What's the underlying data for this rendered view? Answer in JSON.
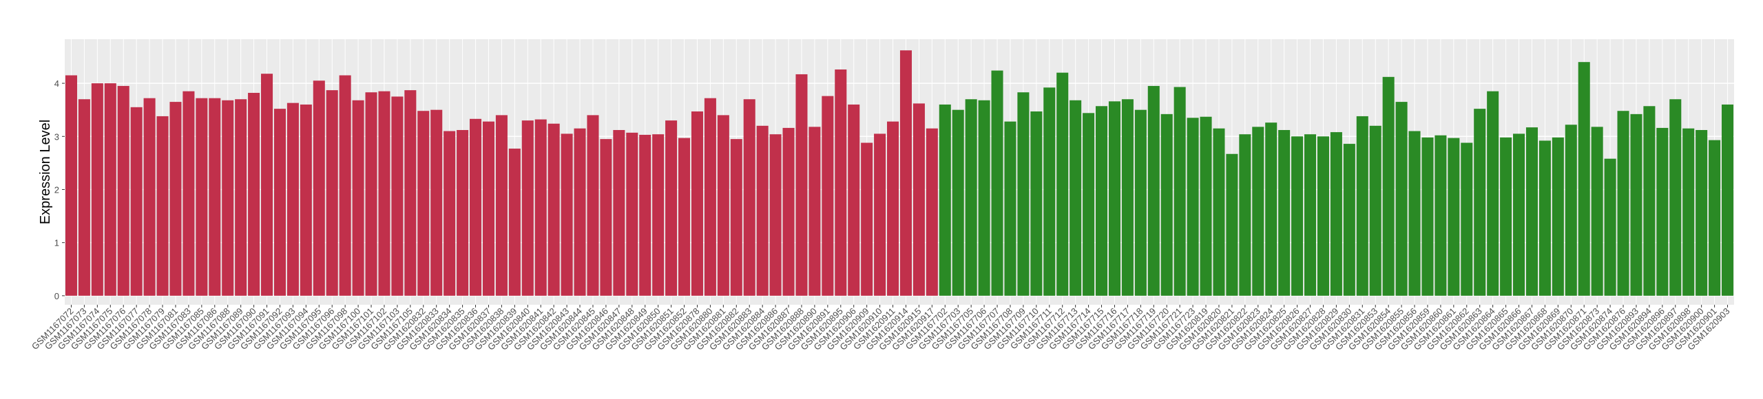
{
  "chart_data": {
    "type": "bar",
    "y_label": "Expression Level",
    "categories": [
      "GSM1167072",
      "GSM1167073",
      "GSM1167074",
      "GSM1167075",
      "GSM1167076",
      "GSM1167077",
      "GSM1167078",
      "GSM1167079",
      "GSM1167081",
      "GSM1167083",
      "GSM1167085",
      "GSM1167086",
      "GSM1167088",
      "GSM1167089",
      "GSM1167090",
      "GSM1167091",
      "GSM1167092",
      "GSM1167093",
      "GSM1167094",
      "GSM1167095",
      "GSM1167096",
      "GSM1167098",
      "GSM1167100",
      "GSM1167101",
      "GSM1167102",
      "GSM1167103",
      "GSM1167105",
      "GSM1620832",
      "GSM1620833",
      "GSM1620834",
      "GSM1620835",
      "GSM1620836",
      "GSM1620837",
      "GSM1620838",
      "GSM1620839",
      "GSM1620840",
      "GSM1620841",
      "GSM1620842",
      "GSM1620843",
      "GSM1620844",
      "GSM1620845",
      "GSM1620846",
      "GSM1620847",
      "GSM1620848",
      "GSM1620849",
      "GSM1620850",
      "GSM1620851",
      "GSM1620852",
      "GSM1620878",
      "GSM1620880",
      "GSM1620881",
      "GSM1620882",
      "GSM1620883",
      "GSM1620884",
      "GSM1620886",
      "GSM1620887",
      "GSM1620888",
      "GSM1620890",
      "GSM1620891",
      "GSM1620895",
      "GSM1620906",
      "GSM1620909",
      "GSM1620910",
      "GSM1620911",
      "GSM1620914",
      "GSM1620915",
      "GSM1620917",
      "GSM1167702",
      "GSM1167703",
      "GSM1167705",
      "GSM1167706",
      "GSM1167707",
      "GSM1167708",
      "GSM1167709",
      "GSM1167710",
      "GSM1167711",
      "GSM1167712",
      "GSM1167713",
      "GSM1167714",
      "GSM1167715",
      "GSM1167716",
      "GSM1167717",
      "GSM1167718",
      "GSM1167719",
      "GSM1167720",
      "GSM1167721",
      "GSM1167723",
      "GSM1620819",
      "GSM1620820",
      "GSM1620821",
      "GSM1620822",
      "GSM1620823",
      "GSM1620824",
      "GSM1620825",
      "GSM1620826",
      "GSM1620827",
      "GSM1620828",
      "GSM1620829",
      "GSM1620830",
      "GSM1620831",
      "GSM1620853",
      "GSM1620854",
      "GSM1620855",
      "GSM1620856",
      "GSM1620859",
      "GSM1620860",
      "GSM1620861",
      "GSM1620862",
      "GSM1620863",
      "GSM1620864",
      "GSM1620865",
      "GSM1620866",
      "GSM1620867",
      "GSM1620868",
      "GSM1620869",
      "GSM1620870",
      "GSM1620871",
      "GSM1620873",
      "GSM1620874",
      "GSM1620876",
      "GSM1620893",
      "GSM1620894",
      "GSM1620896",
      "GSM1620897",
      "GSM1620898",
      "GSM1620900",
      "GSM1620901",
      "GSM1620903"
    ],
    "values": [
      4.15,
      3.7,
      4.0,
      4.0,
      3.95,
      3.55,
      3.72,
      3.38,
      3.65,
      3.85,
      3.72,
      3.72,
      3.68,
      3.7,
      3.82,
      4.18,
      3.52,
      3.63,
      3.6,
      4.05,
      3.87,
      4.15,
      3.68,
      3.83,
      3.85,
      3.75,
      3.87,
      3.48,
      3.5,
      3.1,
      3.12,
      3.33,
      3.28,
      3.4,
      2.77,
      3.3,
      3.32,
      3.24,
      3.05,
      3.15,
      3.4,
      2.95,
      3.12,
      3.07,
      3.03,
      3.04,
      3.3,
      2.97,
      3.47,
      3.72,
      3.4,
      2.95,
      3.7,
      3.2,
      3.04,
      3.16,
      4.17,
      3.18,
      3.76,
      4.26,
      3.6,
      2.88,
      3.05,
      3.28,
      4.62,
      3.62,
      3.15,
      3.6,
      3.5,
      3.7,
      3.68,
      4.24,
      3.28,
      3.83,
      3.47,
      3.92,
      4.2,
      3.68,
      3.44,
      3.57,
      3.66,
      3.7,
      3.5,
      3.95,
      3.42,
      3.93,
      3.35,
      3.37,
      3.15,
      2.67,
      3.04,
      3.18,
      3.26,
      3.12,
      3.0,
      3.04,
      3.0,
      3.08,
      2.86,
      3.38,
      3.2,
      4.12,
      3.65,
      3.1,
      2.98,
      3.02,
      2.97,
      2.88,
      3.52,
      3.85,
      2.98,
      3.05,
      3.17,
      2.92,
      2.98,
      3.22,
      4.4,
      3.18,
      2.58,
      3.48,
      3.42,
      3.57,
      3.16,
      3.7,
      3.15,
      3.12,
      2.93,
      3.6
    ],
    "colors": [
      "#c1304b",
      "#c1304b",
      "#c1304b",
      "#c1304b",
      "#c1304b",
      "#c1304b",
      "#c1304b",
      "#c1304b",
      "#c1304b",
      "#c1304b",
      "#c1304b",
      "#c1304b",
      "#c1304b",
      "#c1304b",
      "#c1304b",
      "#c1304b",
      "#c1304b",
      "#c1304b",
      "#c1304b",
      "#c1304b",
      "#c1304b",
      "#c1304b",
      "#c1304b",
      "#c1304b",
      "#c1304b",
      "#c1304b",
      "#c1304b",
      "#c1304b",
      "#c1304b",
      "#c1304b",
      "#c1304b",
      "#c1304b",
      "#c1304b",
      "#c1304b",
      "#c1304b",
      "#c1304b",
      "#c1304b",
      "#c1304b",
      "#c1304b",
      "#c1304b",
      "#c1304b",
      "#c1304b",
      "#c1304b",
      "#c1304b",
      "#c1304b",
      "#c1304b",
      "#c1304b",
      "#c1304b",
      "#c1304b",
      "#c1304b",
      "#c1304b",
      "#c1304b",
      "#c1304b",
      "#c1304b",
      "#c1304b",
      "#c1304b",
      "#c1304b",
      "#c1304b",
      "#c1304b",
      "#c1304b",
      "#c1304b",
      "#c1304b",
      "#c1304b",
      "#c1304b",
      "#c1304b",
      "#c1304b",
      "#c1304b",
      "#2a8a25",
      "#2a8a25",
      "#2a8a25",
      "#2a8a25",
      "#2a8a25",
      "#2a8a25",
      "#2a8a25",
      "#2a8a25",
      "#2a8a25",
      "#2a8a25",
      "#2a8a25",
      "#2a8a25",
      "#2a8a25",
      "#2a8a25",
      "#2a8a25",
      "#2a8a25",
      "#2a8a25",
      "#2a8a25",
      "#2a8a25",
      "#2a8a25",
      "#2a8a25",
      "#2a8a25",
      "#2a8a25",
      "#2a8a25",
      "#2a8a25",
      "#2a8a25",
      "#2a8a25",
      "#2a8a25",
      "#2a8a25",
      "#2a8a25",
      "#2a8a25",
      "#2a8a25",
      "#2a8a25",
      "#2a8a25",
      "#2a8a25",
      "#2a8a25",
      "#2a8a25",
      "#2a8a25",
      "#2a8a25",
      "#2a8a25",
      "#2a8a25",
      "#2a8a25",
      "#2a8a25",
      "#2a8a25",
      "#2a8a25",
      "#2a8a25",
      "#2a8a25",
      "#2a8a25",
      "#2a8a25",
      "#2a8a25",
      "#2a8a25",
      "#2a8a25",
      "#2a8a25",
      "#2a8a25",
      "#2a8a25",
      "#2a8a25",
      "#2a8a25",
      "#2a8a25",
      "#2a8a25",
      "#2a8a25",
      "#2a8a25"
    ],
    "ylim": [
      -0.17,
      4.83
    ],
    "yticks": [
      0,
      1,
      2,
      3,
      4
    ],
    "grid": true
  }
}
